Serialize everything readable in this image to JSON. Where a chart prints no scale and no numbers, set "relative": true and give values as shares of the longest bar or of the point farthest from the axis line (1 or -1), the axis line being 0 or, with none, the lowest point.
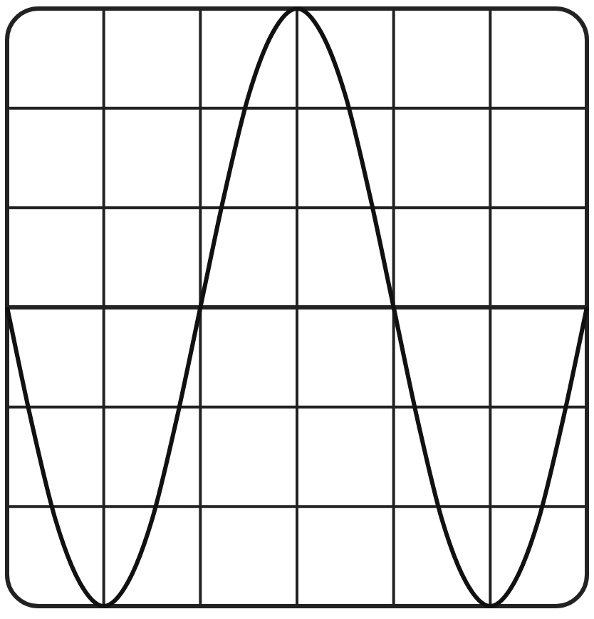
{
  "chart_data": {
    "type": "line",
    "relative": true,
    "grid": true,
    "tick_labels": false,
    "marker": "none",
    "categories": [
      null,
      null,
      null,
      null,
      null,
      null,
      null,
      null,
      null,
      null,
      null,
      null,
      null,
      null,
      null,
      null,
      null,
      null,
      null,
      null,
      null,
      null,
      null,
      null,
      null
    ],
    "series": [
      {
        "color": "#111111",
        "values": [
          0,
          -0.38,
          -0.71,
          -0.92,
          -1,
          -0.92,
          -0.71,
          -0.38,
          0,
          0.38,
          0.71,
          0.92,
          1,
          0.92,
          0.71,
          0.38,
          0,
          -0.38,
          -0.71,
          -0.92,
          -1,
          -0.92,
          -0.71,
          -0.38,
          0
        ]
      }
    ]
  }
}
